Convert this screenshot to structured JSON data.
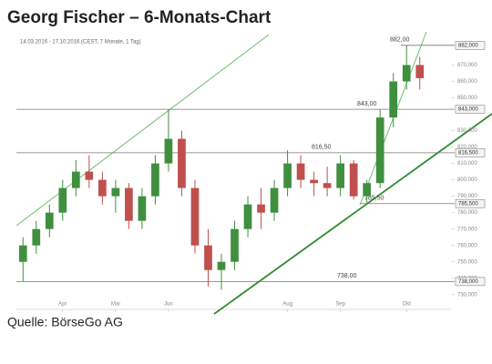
{
  "chart_data": {
    "type": "candlestick",
    "title": "Georg Fischer – 6-Monats-Chart",
    "subtitle": "14.03.2016 - 17.10.2016 (CEST, 7 Monate, 1 Tag)",
    "source": "Quelle: BörseGo AG",
    "categories": [
      null,
      null,
      null,
      "Apr",
      null,
      null,
      null,
      "Mai",
      null,
      null,
      null,
      "Jun",
      null,
      null,
      null,
      null,
      null,
      null,
      null,
      null,
      "Aug",
      null,
      null,
      null,
      "Sep",
      null,
      null,
      null,
      null,
      "Okt",
      null
    ],
    "open": [
      750,
      760,
      770,
      780,
      795,
      805,
      800,
      790,
      795,
      775,
      790,
      810,
      825,
      795,
      760,
      745,
      750,
      770,
      785,
      780,
      795,
      810,
      800,
      798,
      795,
      810,
      790,
      798,
      838,
      860,
      870
    ],
    "high": [
      765,
      775,
      785,
      800,
      812,
      815,
      805,
      800,
      798,
      795,
      815,
      843,
      830,
      800,
      770,
      755,
      775,
      790,
      795,
      800,
      818,
      815,
      805,
      808,
      815,
      812,
      800,
      843,
      865,
      882,
      875
    ],
    "low": [
      738,
      755,
      765,
      775,
      790,
      795,
      785,
      780,
      770,
      770,
      785,
      805,
      790,
      755,
      735,
      733,
      745,
      765,
      770,
      775,
      790,
      795,
      790,
      790,
      790,
      788,
      785,
      795,
      832,
      855,
      855
    ],
    "close": [
      760,
      770,
      780,
      795,
      805,
      800,
      790,
      795,
      775,
      790,
      810,
      825,
      795,
      760,
      745,
      750,
      770,
      785,
      780,
      795,
      810,
      800,
      798,
      795,
      810,
      790,
      798,
      838,
      860,
      870,
      862
    ],
    "up_color": "#3f8f3f",
    "down_color": "#c0504d",
    "ylim": [
      721,
      893
    ],
    "yticks": [
      {
        "value": 730,
        "label": "730,000"
      },
      {
        "value": 740,
        "label": "740,000"
      },
      {
        "value": 750,
        "label": "750,000"
      },
      {
        "value": 760,
        "label": "760,000"
      },
      {
        "value": 770,
        "label": "770,000"
      },
      {
        "value": 780,
        "label": "780,000"
      },
      {
        "value": 790,
        "label": "790,000"
      },
      {
        "value": 800,
        "label": "800,000"
      },
      {
        "value": 810,
        "label": "810,000"
      },
      {
        "value": 820,
        "label": "820,000"
      },
      {
        "value": 830,
        "label": "830,000"
      },
      {
        "value": 850,
        "label": "850,000"
      },
      {
        "value": 860,
        "label": "860,000"
      },
      {
        "value": 870,
        "label": "870,000"
      }
    ],
    "levels": [
      {
        "value": 882,
        "label": "882,00",
        "axis_label": "882,000"
      },
      {
        "value": 843,
        "label": "843,00",
        "axis_label": "843,000"
      },
      {
        "value": 816.5,
        "label": "816,50",
        "axis_label": "816,500"
      },
      {
        "value": 785.5,
        "label": "785,50",
        "axis_label": "785,500"
      },
      {
        "value": 738,
        "label": "738,00",
        "axis_label": "738,000"
      }
    ]
  }
}
